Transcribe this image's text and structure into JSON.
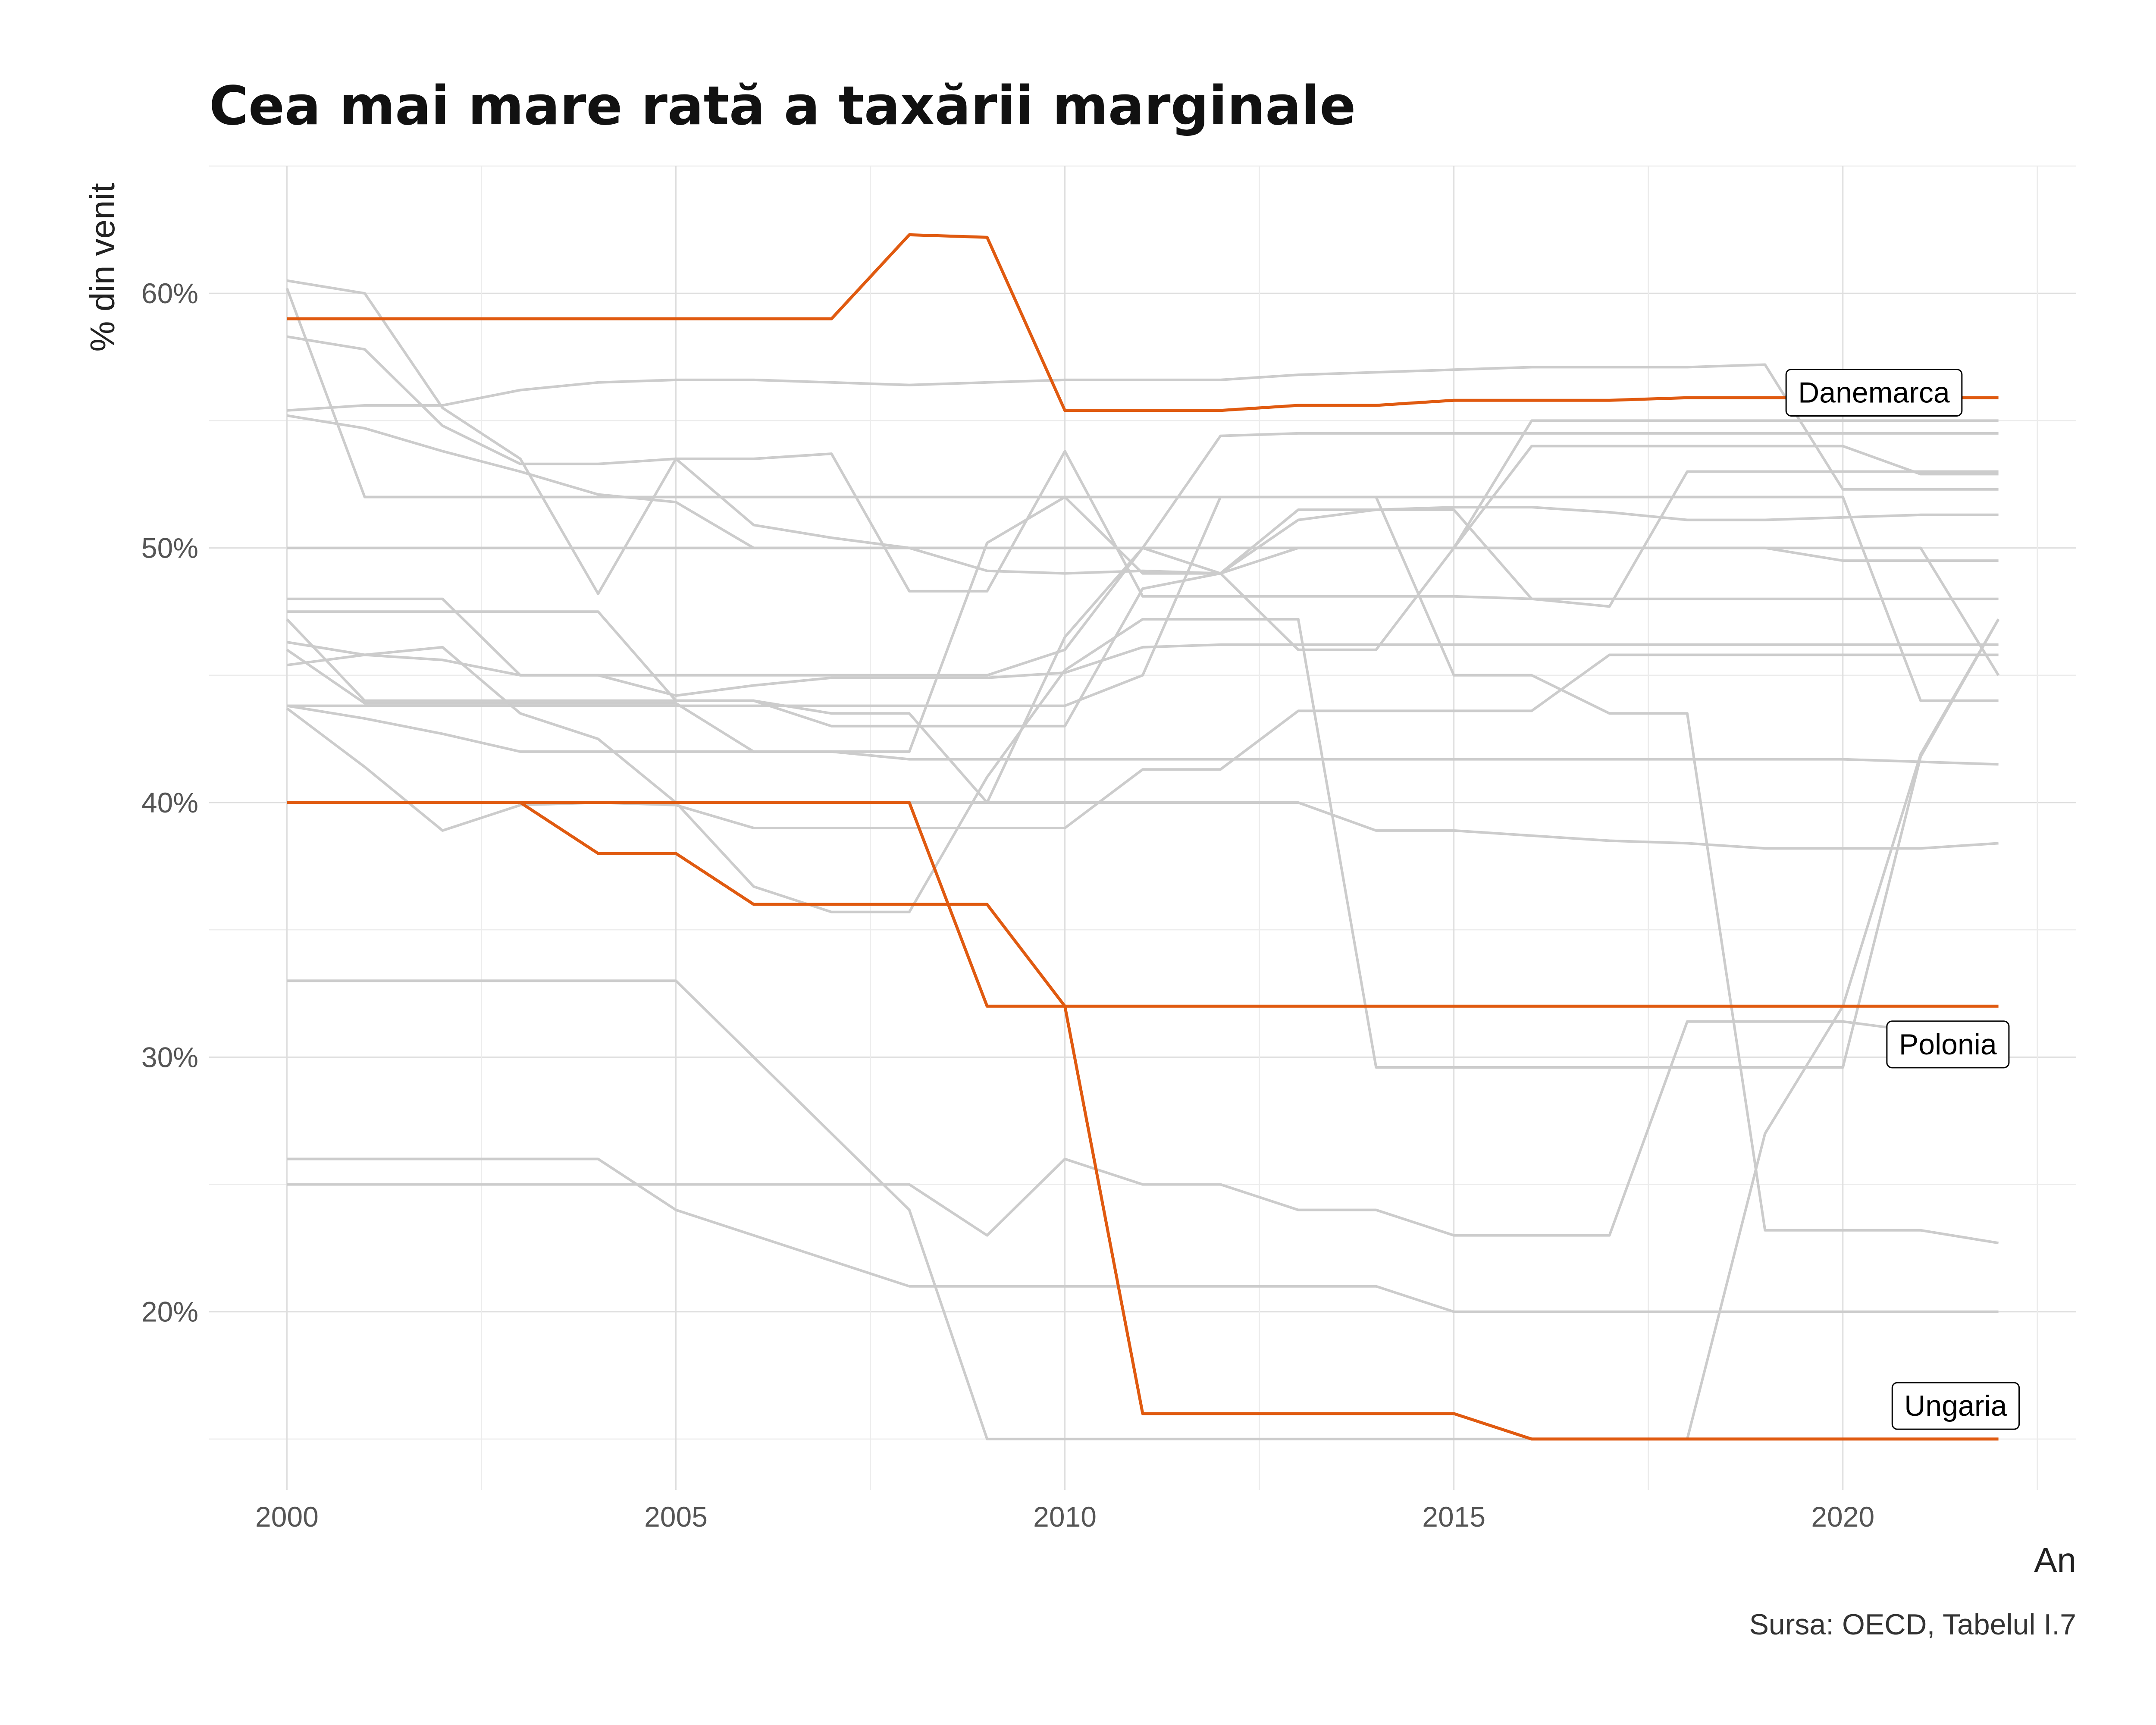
{
  "chart_data": {
    "type": "line",
    "title": "Cea mai mare rată a taxării marginale",
    "xlabel": "An",
    "ylabel": "% din venit",
    "caption": "Sursa: OECD, Tabelul I.7",
    "x_ticks": [
      2000,
      2005,
      2010,
      2015,
      2020
    ],
    "y_ticks": [
      20,
      30,
      40,
      50,
      60
    ],
    "y_tick_labels": [
      "20%",
      "30%",
      "40%",
      "50%",
      "60%"
    ],
    "x_tick_labels": [
      "2000",
      "2005",
      "2010",
      "2015",
      "2020"
    ],
    "xlim": [
      1999,
      2023
    ],
    "ylim": [
      13,
      65
    ],
    "grid": true,
    "highlight_color": "#e05a10",
    "background_color": "#cccccc",
    "x": [
      2000,
      2001,
      2002,
      2003,
      2004,
      2005,
      2006,
      2007,
      2008,
      2009,
      2010,
      2011,
      2012,
      2013,
      2014,
      2015,
      2016,
      2017,
      2018,
      2019,
      2020,
      2021,
      2022
    ],
    "highlight_series": [
      {
        "name": "Danemarca",
        "values": [
          59,
          59,
          59,
          59,
          59,
          59,
          59,
          59,
          62.3,
          62.2,
          55.4,
          55.4,
          55.4,
          55.6,
          55.6,
          55.8,
          55.8,
          55.8,
          55.9,
          55.9,
          55.9,
          55.9,
          55.9
        ]
      },
      {
        "name": "Polonia",
        "values": [
          40,
          40,
          40,
          40,
          40,
          40,
          40,
          40,
          40,
          32,
          32,
          32,
          32,
          32,
          32,
          32,
          32,
          32,
          32,
          32,
          32,
          32,
          32
        ]
      },
      {
        "name": "Ungaria",
        "values": [
          40,
          40,
          40,
          40,
          38,
          38,
          36,
          36,
          36,
          36,
          32,
          16,
          16,
          16,
          16,
          16,
          15,
          15,
          15,
          15,
          15,
          15,
          15
        ]
      }
    ],
    "background_series": [
      {
        "values": [
          60.5,
          60,
          55.5,
          53.5,
          48.2,
          53.5,
          53.5,
          53.7,
          48.3,
          48.3,
          53.8,
          48.1,
          48.1,
          48.1,
          48.1,
          48.1,
          48,
          47.7,
          53,
          53,
          53,
          53,
          53
        ]
      },
      {
        "values": [
          55.4,
          55.6,
          55.6,
          56.2,
          56.5,
          56.6,
          56.6,
          56.5,
          56.4,
          56.5,
          56.6,
          56.6,
          56.6,
          56.8,
          56.9,
          57,
          57.1,
          57.1,
          57.1,
          57.2,
          52.3,
          52.3,
          52.3
        ]
      },
      {
        "values": [
          58.3,
          57.8,
          54.8,
          53.3,
          53.3,
          53.5,
          50.9,
          50.4,
          50,
          49.1,
          49,
          49.1,
          49,
          51.1,
          51.5,
          51.6,
          51.6,
          51.4,
          51.1,
          51.1,
          51.2,
          51.3,
          51.3
        ]
      },
      {
        "values": [
          55.2,
          54.7,
          53.8,
          53,
          52.1,
          51.8,
          50,
          50,
          50,
          50,
          50,
          50,
          50,
          50,
          50,
          50,
          50,
          50,
          50,
          50,
          49.5,
          49.5,
          49.5
        ]
      },
      {
        "values": [
          60.2,
          52,
          52,
          52,
          52,
          52,
          52,
          52,
          52,
          52,
          52,
          52,
          52,
          52,
          52,
          52,
          52,
          52,
          52,
          52,
          52,
          44,
          44
        ]
      },
      {
        "values": [
          50,
          50,
          50,
          50,
          50,
          50,
          50,
          50,
          50,
          50,
          50,
          50,
          50,
          50,
          50,
          50,
          50,
          50,
          50,
          50,
          50,
          50,
          45
        ]
      },
      {
        "values": [
          48,
          48,
          48,
          45,
          45,
          45,
          45,
          45,
          45,
          45,
          46,
          50,
          49,
          46,
          46,
          50,
          55,
          55,
          55,
          55,
          55,
          55,
          55
        ]
      },
      {
        "values": [
          47.5,
          47.5,
          47.5,
          47.5,
          47.5,
          44,
          44,
          43,
          43,
          43,
          43,
          48.4,
          49,
          50,
          50,
          50,
          54,
          54,
          54,
          54,
          54,
          52.9,
          52.9
        ]
      },
      {
        "values": [
          46.3,
          45.8,
          46.1,
          43.5,
          42.5,
          40,
          36.7,
          35.7,
          35.7,
          41,
          45.2,
          47.2,
          47.2,
          47.2,
          29.6,
          29.6,
          29.6,
          29.6,
          29.6,
          29.6,
          29.6,
          41.8,
          47.2
        ]
      },
      {
        "values": [
          46,
          43.9,
          43.9,
          43.9,
          43.9,
          43.9,
          42,
          42,
          42,
          50.2,
          52,
          49,
          49,
          51.5,
          51.5,
          51.5,
          48,
          48,
          48,
          48,
          48,
          48,
          48
        ]
      },
      {
        "values": [
          45.4,
          45.8,
          45.6,
          45,
          45,
          44.2,
          44.6,
          44.9,
          44.9,
          44.9,
          45.1,
          46.1,
          46.2,
          46.2,
          46.2,
          46.2,
          46.2,
          46.2,
          46.2,
          46.2,
          46.2,
          46.2,
          46.2
        ]
      },
      {
        "values": [
          47.2,
          44,
          44,
          44,
          44,
          44,
          44,
          43.5,
          43.5,
          40,
          46.5,
          50,
          54.4,
          54.5,
          54.5,
          54.5,
          54.5,
          54.5,
          54.5,
          54.5,
          54.5,
          54.5,
          54.5
        ]
      },
      {
        "values": [
          43.8,
          43.3,
          42.7,
          42,
          42,
          42,
          42,
          42,
          41.7,
          41.7,
          41.7,
          41.7,
          41.7,
          41.7,
          41.7,
          41.7,
          41.7,
          41.7,
          41.7,
          41.7,
          41.7,
          41.6,
          41.5
        ]
      },
      {
        "values": [
          43.8,
          43.8,
          43.8,
          43.8,
          43.8,
          43.8,
          43.8,
          43.8,
          43.8,
          43.8,
          43.8,
          45,
          52,
          52,
          52,
          45,
          45,
          43.5,
          43.5,
          23.2,
          23.2,
          23.2,
          22.7
        ]
      },
      {
        "values": [
          43.7,
          41.4,
          38.9,
          39.9,
          40,
          39.9,
          39,
          39,
          39,
          39,
          39,
          41.3,
          41.3,
          43.6,
          43.6,
          43.6,
          43.6,
          45.8,
          45.8,
          45.8,
          45.8,
          45.8,
          45.8
        ]
      },
      {
        "values": [
          40,
          40,
          40,
          40,
          40,
          40,
          40,
          40,
          40,
          40,
          40,
          40,
          40,
          40,
          38.9,
          38.9,
          38.7,
          38.5,
          38.4,
          38.2,
          38.2,
          38.2,
          38.4
        ]
      },
      {
        "values": [
          33,
          33,
          33,
          33,
          33,
          33,
          30,
          27,
          24,
          15,
          15,
          15,
          15,
          15,
          15,
          15,
          15,
          15,
          15,
          27,
          32,
          41.9,
          47.2
        ]
      },
      {
        "values": [
          26,
          26,
          26,
          26,
          26,
          24,
          23,
          22,
          21,
          21,
          21,
          21,
          21,
          21,
          21,
          20,
          20,
          20,
          20,
          20,
          20,
          20,
          20
        ]
      },
      {
        "values": [
          25,
          25,
          25,
          25,
          25,
          25,
          25,
          25,
          25,
          23,
          26,
          25,
          25,
          24,
          24,
          23,
          23,
          23,
          31.4,
          31.4,
          31.4,
          31,
          31
        ]
      }
    ],
    "labels": [
      {
        "series": "Danemarca",
        "text": "Danemarca",
        "x": 2020.4,
        "y": 56.1
      },
      {
        "series": "Polonia",
        "text": "Polonia",
        "x": 2021.35,
        "y": 30.5
      },
      {
        "series": "Ungaria",
        "text": "Ungaria",
        "x": 2021.45,
        "y": 16.3
      }
    ]
  }
}
